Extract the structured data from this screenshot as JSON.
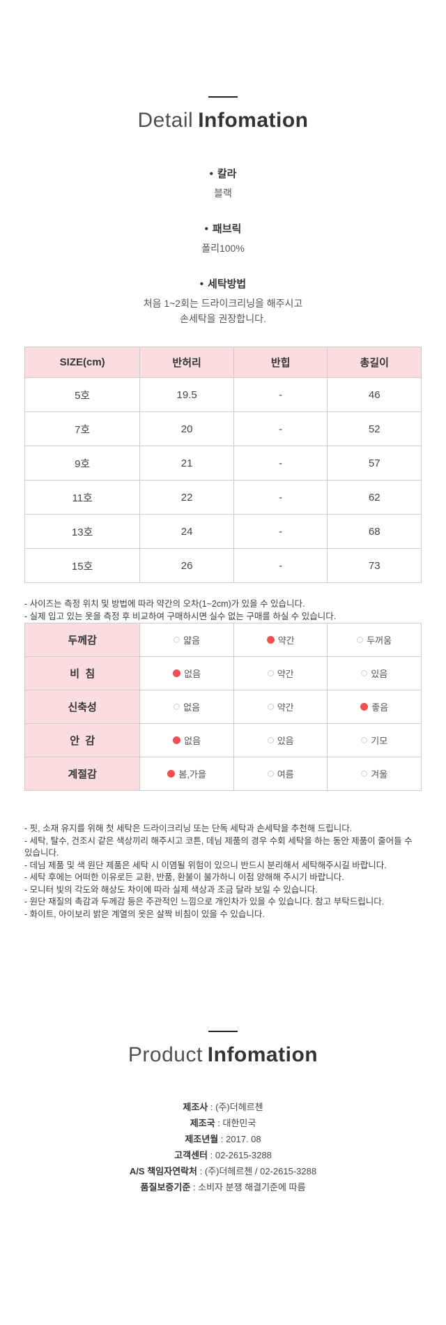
{
  "detail_header": {
    "title_light": "Detail",
    "title_bold": "Infomation"
  },
  "specs": [
    {
      "title": "칼라",
      "lines": [
        "블랙"
      ]
    },
    {
      "title": "패브릭",
      "lines": [
        "폴리100%"
      ]
    },
    {
      "title": "세탁방법",
      "lines": [
        "처음 1~2회는 드라이크리닝을 해주시고",
        "손세탁을 권장합니다."
      ]
    }
  ],
  "size_table": {
    "headers": [
      "SIZE(cm)",
      "반허리",
      "반힙",
      "총길이"
    ],
    "rows": [
      [
        "5호",
        "19.5",
        "-",
        "46"
      ],
      [
        "7호",
        "20",
        "-",
        "52"
      ],
      [
        "9호",
        "21",
        "-",
        "57"
      ],
      [
        "11호",
        "22",
        "-",
        "62"
      ],
      [
        "13호",
        "24",
        "-",
        "68"
      ],
      [
        "15호",
        "26",
        "-",
        "73"
      ]
    ]
  },
  "size_notes": [
    "- 사이즈는 측정 위치 및 방법에 따라 약간의 오차(1~2cm)가 있을 수 있습니다.",
    "- 실제 입고 있는 옷을 측정 후 비교하여 구매하시면 실수 없는 구매를 하실 수 있습니다."
  ],
  "fabric_table": {
    "rows": [
      {
        "label": "두께감",
        "options": [
          {
            "text": "얇음",
            "selected": false
          },
          {
            "text": "약간",
            "selected": true
          },
          {
            "text": "두꺼움",
            "selected": false
          }
        ]
      },
      {
        "label": "비  침",
        "options": [
          {
            "text": "없음",
            "selected": true
          },
          {
            "text": "약간",
            "selected": false
          },
          {
            "text": "있음",
            "selected": false
          }
        ]
      },
      {
        "label": "신축성",
        "options": [
          {
            "text": "없음",
            "selected": false
          },
          {
            "text": "약간",
            "selected": false
          },
          {
            "text": "좋음",
            "selected": true
          }
        ]
      },
      {
        "label": "안  감",
        "options": [
          {
            "text": "없음",
            "selected": true
          },
          {
            "text": "있음",
            "selected": false
          },
          {
            "text": "기모",
            "selected": false
          }
        ]
      },
      {
        "label": "계절감",
        "options": [
          {
            "text": "봄,가을",
            "selected": true
          },
          {
            "text": "여름",
            "selected": false
          },
          {
            "text": "겨울",
            "selected": false
          }
        ]
      }
    ]
  },
  "care_notes": [
    "- 핏, 소재 유지를 위해 첫 세탁은 드라이크리닝 또는 단독 세탁과 손세탁을 추천해 드립니다.",
    "- 세탁, 탈수, 건조시 같은 색상끼리 해주시고 코튼, 데님 제품의 경우 수회 세탁을 하는 동안 제품이 줄어들 수 있습니다.",
    "- 데님 제품 및 색 원단 제품은 세탁 시 이염될 위험이 있으니 반드시 분리해서 세탁해주시길 바랍니다.",
    "- 세탁 후에는 어떠한 이유로든 교환, 반품, 환불이 불가하니 이점 양해해 주시기 바랍니다.",
    "- 모니터 빛의 각도와 해상도 차이에 따라 실제 색상과 조금 달라 보일 수 있습니다.",
    "- 원단 재질의 촉감과 두께감 등은 주관적인 느낌으로 개인차가 있을 수 있습니다. 참고 부탁드립니다.",
    "- 화이트, 아이보리 밝은 계열의 옷은 살짝 비침이 있을 수 있습니다."
  ],
  "product_header": {
    "title_light": "Product",
    "title_bold": "Infomation"
  },
  "product_info": [
    {
      "label": "제조사",
      "value": "(주)더헤르첸"
    },
    {
      "label": "제조국",
      "value": "대한민국"
    },
    {
      "label": "제조년월",
      "value": "2017. 08"
    },
    {
      "label": "고객센터",
      "value": "02-2615-3288"
    },
    {
      "label": "A/S 책임자연락처",
      "value": "(주)더헤르첸 / 02-2615-3288"
    },
    {
      "label": "품질보증기준",
      "value": "소비자 분쟁 해결기준에 따름"
    }
  ],
  "colors": {
    "table_header_pink": "#fbdce1",
    "selected_dot_red": "#f0504e",
    "table_border": "#cccccc"
  }
}
